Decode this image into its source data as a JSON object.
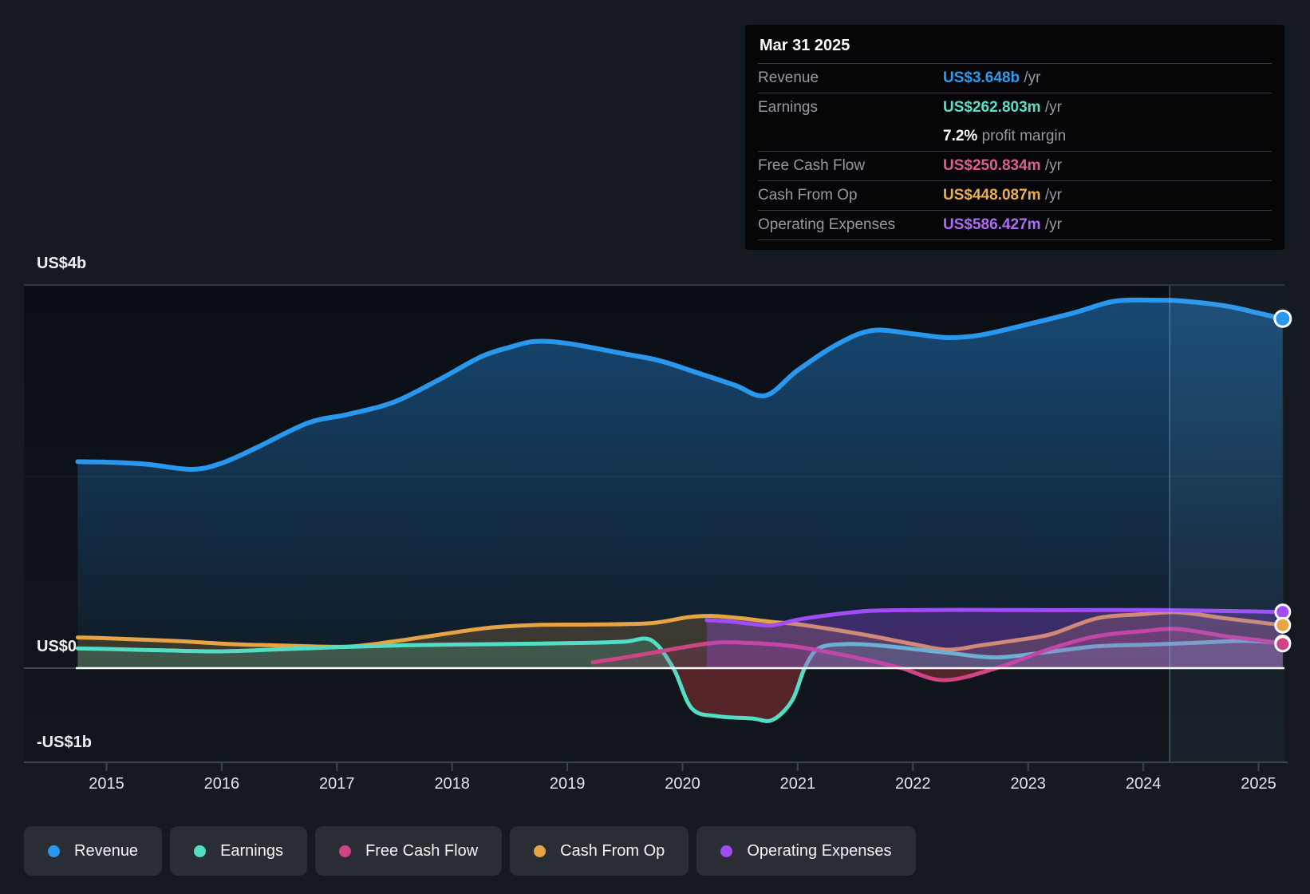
{
  "palette": {
    "page_bg": "#151A21",
    "plot_bg_top": "#0A0F16",
    "plot_bg_bottom": "#11161D",
    "grid_gray": "#3A4047",
    "axis_gray": "#3E444C",
    "zero_line": "#F4F6F8",
    "faint_grid": "rgba(255,255,255,0.05)",
    "band_fill": "rgba(125,175,220,0.08)",
    "band_edge": "rgba(150,195,235,0.28)",
    "negative_fill": "rgba(178,58,58,0.42)"
  },
  "y_axis": {
    "labels": [
      {
        "text": "US$4b",
        "value_m": 4000
      },
      {
        "text": "US$0",
        "value_m": 0
      },
      {
        "text": "-US$1b",
        "value_m": -1000
      }
    ]
  },
  "x_axis": {
    "years": [
      "2015",
      "2016",
      "2017",
      "2018",
      "2019",
      "2020",
      "2021",
      "2022",
      "2023",
      "2024",
      "2025"
    ]
  },
  "tooltip": {
    "date": "Mar 31 2025",
    "rows": [
      {
        "label": "Revenue",
        "value": "US$3.648b",
        "suffix": " /yr",
        "color": "#2B9CF0"
      },
      {
        "label": "Earnings",
        "value": "US$262.803m",
        "suffix": " /yr",
        "color": "#58DFC8"
      },
      {
        "label": "",
        "value": "7.2%",
        "suffix": " profit margin",
        "color": "#FFFFFF",
        "no_border": true
      },
      {
        "label": "Free Cash Flow",
        "value": "US$250.834m",
        "suffix": " /yr",
        "color": "#E25C97"
      },
      {
        "label": "Cash From Op",
        "value": "US$448.087m",
        "suffix": " /yr",
        "color": "#EDAE4E"
      },
      {
        "label": "Operating Expenses",
        "value": "US$586.427m",
        "suffix": " /yr",
        "color": "#B06BF7",
        "bottom_border": true
      }
    ]
  },
  "legend": [
    {
      "label": "Revenue",
      "color": "#2A97EE"
    },
    {
      "label": "Earnings",
      "color": "#52DDC4"
    },
    {
      "label": "Free Cash Flow",
      "color": "#CE4486"
    },
    {
      "label": "Cash From Op",
      "color": "#E6A444"
    },
    {
      "label": "Operating Expenses",
      "color": "#A14DF5"
    }
  ],
  "chart_data": {
    "type": "area",
    "x_unit": "year",
    "y_unit": "US$ millions",
    "x_range": [
      2014.75,
      2025.21
    ],
    "ylim_m": [
      -1340,
      4000
    ],
    "y_gridlines_m": [
      4000,
      2000,
      0,
      -1000
    ],
    "highlight_band": {
      "start_year": 2024.25,
      "end_year": 2025.21,
      "note": "last 12 months ending Mar 31 2025"
    },
    "series": [
      {
        "name": "Revenue",
        "color": "#2A97EE",
        "line_width": 6,
        "points": [
          [
            2014.75,
            2155
          ],
          [
            2015.0,
            2150
          ],
          [
            2015.35,
            2128
          ],
          [
            2015.74,
            2075
          ],
          [
            2016.0,
            2140
          ],
          [
            2016.3,
            2300
          ],
          [
            2016.75,
            2560
          ],
          [
            2017.1,
            2650
          ],
          [
            2017.5,
            2780
          ],
          [
            2017.9,
            3020
          ],
          [
            2018.25,
            3250
          ],
          [
            2018.5,
            3350
          ],
          [
            2018.72,
            3410
          ],
          [
            2019.0,
            3390
          ],
          [
            2019.5,
            3280
          ],
          [
            2019.8,
            3210
          ],
          [
            2020.1,
            3095
          ],
          [
            2020.45,
            2955
          ],
          [
            2020.72,
            2845
          ],
          [
            2021.0,
            3110
          ],
          [
            2021.35,
            3385
          ],
          [
            2021.65,
            3525
          ],
          [
            2022.0,
            3490
          ],
          [
            2022.3,
            3450
          ],
          [
            2022.6,
            3480
          ],
          [
            2023.0,
            3590
          ],
          [
            2023.4,
            3710
          ],
          [
            2023.75,
            3830
          ],
          [
            2024.1,
            3842
          ],
          [
            2024.35,
            3832
          ],
          [
            2024.72,
            3780
          ],
          [
            2025.0,
            3706
          ],
          [
            2025.21,
            3648
          ]
        ]
      },
      {
        "name": "Cash From Op",
        "color": "#E6A444",
        "line_width": 5,
        "points": [
          [
            2014.75,
            320
          ],
          [
            2015.0,
            312
          ],
          [
            2015.6,
            283
          ],
          [
            2016.1,
            250
          ],
          [
            2016.6,
            233
          ],
          [
            2017.1,
            224
          ],
          [
            2017.5,
            280
          ],
          [
            2017.85,
            342
          ],
          [
            2018.3,
            418
          ],
          [
            2018.72,
            450
          ],
          [
            2019.2,
            455
          ],
          [
            2019.72,
            468
          ],
          [
            2020.05,
            532
          ],
          [
            2020.25,
            545
          ],
          [
            2020.5,
            522
          ],
          [
            2020.78,
            482
          ],
          [
            2021.0,
            458
          ],
          [
            2021.35,
            395
          ],
          [
            2021.65,
            333
          ],
          [
            2022.0,
            252
          ],
          [
            2022.3,
            192
          ],
          [
            2022.6,
            240
          ],
          [
            2022.9,
            292
          ],
          [
            2023.2,
            355
          ],
          [
            2023.6,
            520
          ],
          [
            2024.0,
            563
          ],
          [
            2024.3,
            583
          ],
          [
            2024.72,
            518
          ],
          [
            2025.0,
            478
          ],
          [
            2025.21,
            448
          ]
        ]
      },
      {
        "name": "Earnings",
        "color": "#52DDC4",
        "line_width": 5,
        "points": [
          [
            2014.75,
            205
          ],
          [
            2015.0,
            200
          ],
          [
            2015.5,
            185
          ],
          [
            2016.0,
            175
          ],
          [
            2016.5,
            196
          ],
          [
            2017.0,
            218
          ],
          [
            2017.5,
            236
          ],
          [
            2018.0,
            246
          ],
          [
            2018.72,
            255
          ],
          [
            2019.2,
            265
          ],
          [
            2019.5,
            276
          ],
          [
            2019.73,
            290
          ],
          [
            2019.92,
            0
          ],
          [
            2020.08,
            -420
          ],
          [
            2020.3,
            -502
          ],
          [
            2020.6,
            -525
          ],
          [
            2020.78,
            -542
          ],
          [
            2020.95,
            -340
          ],
          [
            2021.06,
            0
          ],
          [
            2021.18,
            205
          ],
          [
            2021.4,
            250
          ],
          [
            2021.65,
            242
          ],
          [
            2021.9,
            213
          ],
          [
            2022.3,
            160
          ],
          [
            2022.72,
            112
          ],
          [
            2023.17,
            168
          ],
          [
            2023.6,
            228
          ],
          [
            2024.0,
            243
          ],
          [
            2024.5,
            267
          ],
          [
            2024.88,
            284
          ],
          [
            2025.21,
            263
          ]
        ]
      },
      {
        "name": "Free Cash Flow",
        "color": "#CE4486",
        "line_width": 5,
        "points": [
          [
            2019.22,
            60
          ],
          [
            2019.6,
            132
          ],
          [
            2020.0,
            216
          ],
          [
            2020.3,
            267
          ],
          [
            2020.6,
            262
          ],
          [
            2020.92,
            234
          ],
          [
            2021.2,
            182
          ],
          [
            2021.6,
            86
          ],
          [
            2021.9,
            0
          ],
          [
            2022.27,
            -126
          ],
          [
            2022.73,
            2
          ],
          [
            2023.2,
            205
          ],
          [
            2023.6,
            335
          ],
          [
            2024.0,
            386
          ],
          [
            2024.3,
            408
          ],
          [
            2024.72,
            332
          ],
          [
            2025.0,
            292
          ],
          [
            2025.21,
            251
          ]
        ]
      },
      {
        "name": "Operating Expenses",
        "color": "#A14DF5",
        "line_width": 5,
        "points": [
          [
            2020.21,
            500
          ],
          [
            2020.4,
            488
          ],
          [
            2020.6,
            462
          ],
          [
            2020.78,
            446
          ],
          [
            2021.0,
            506
          ],
          [
            2021.3,
            558
          ],
          [
            2021.6,
            596
          ],
          [
            2021.9,
            605
          ],
          [
            2022.4,
            608
          ],
          [
            2023.0,
            606
          ],
          [
            2023.6,
            606
          ],
          [
            2024.1,
            606
          ],
          [
            2024.45,
            601
          ],
          [
            2024.8,
            595
          ],
          [
            2025.21,
            586
          ]
        ]
      }
    ]
  }
}
